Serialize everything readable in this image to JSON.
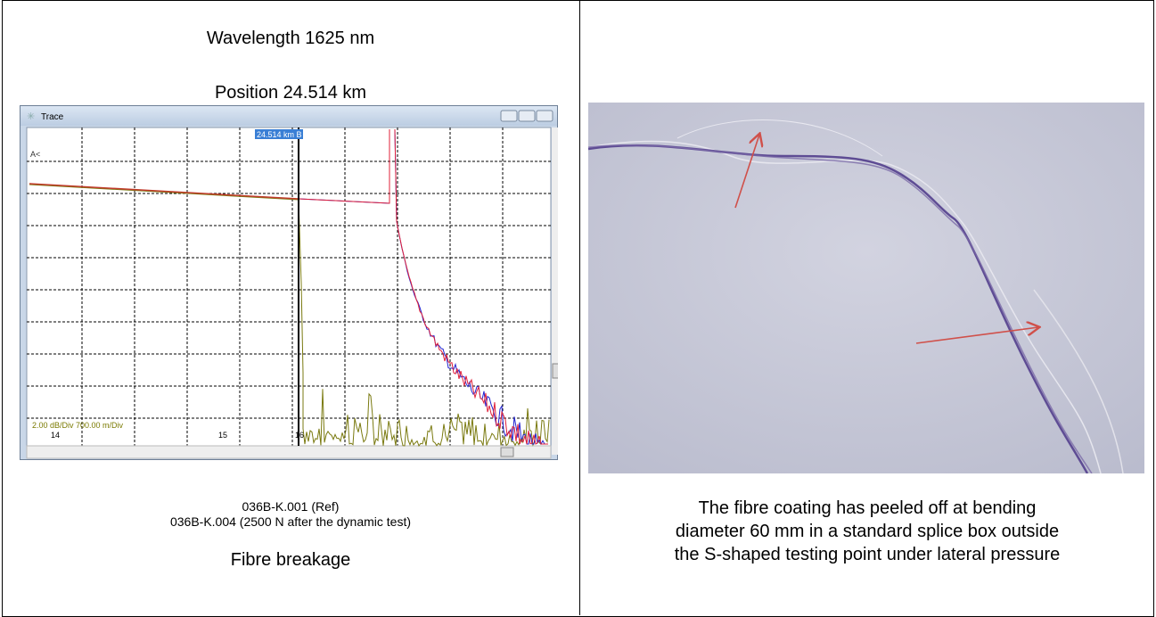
{
  "left": {
    "wavelength": "Wavelength 1625 nm",
    "position": "Position 24.514 km",
    "trace": {
      "title": "Trace",
      "cursor_label": "24.514 km B",
      "marker": "A<",
      "scale": "2.00 dB/Div 700.00 m/Div",
      "x_labels": [
        "14",
        "15",
        "16"
      ]
    },
    "caption": [
      "036B-K.001 (Ref)",
      "036B-K.004 (2500 N after the dynamic test)"
    ],
    "result": "Fibre breakage"
  },
  "right": {
    "caption": [
      "The fibre coating has peeled off at bending",
      "diameter 60 mm in a standard splice box outside",
      "the S-shaped testing point under lateral pressure"
    ]
  }
}
